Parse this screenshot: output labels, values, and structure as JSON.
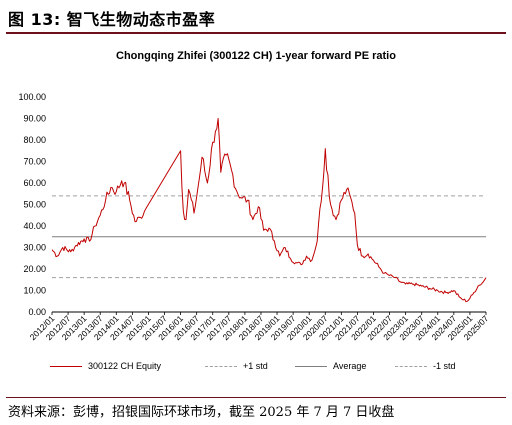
{
  "figure": {
    "title": "图 13: 智飞生物动态市盈率",
    "source": "资料来源：彭博，招银国际环球市场，截至 2025 年 7 月 7 日收盘"
  },
  "colors": {
    "series": "#c00000",
    "plus_std": "#a0a0a0",
    "average": "#7f7f7f",
    "minus_std": "#a0a0a0",
    "rule": "#6d0f1a"
  },
  "legend": {
    "series": "300122 CH Equity",
    "plus_std": "+1 std",
    "average": "Average",
    "minus_std": "-1 std"
  },
  "chart_data": {
    "type": "line",
    "title": "Chongqing Zhifei (300122 CH) 1-year forward PE ratio",
    "xlabel": "",
    "ylabel": "",
    "ylim": [
      0,
      100
    ],
    "yticks": [
      "100.00",
      "90.00",
      "80.00",
      "70.00",
      "60.00",
      "50.00",
      "40.00",
      "30.00",
      "20.00",
      "10.00",
      "0.00"
    ],
    "xticks": [
      "2012/01",
      "2012/07",
      "2013/01",
      "2013/07",
      "2014/01",
      "2014/07",
      "2015/01",
      "2015/07",
      "2016/01",
      "2016/07",
      "2017/01",
      "2017/07",
      "2018/01",
      "2018/07",
      "2019/01",
      "2019/07",
      "2020/01",
      "2020/07",
      "2021/01",
      "2021/07",
      "2022/01",
      "2022/07",
      "2023/01",
      "2023/07",
      "2024/01",
      "2024/07",
      "2025/01",
      "2025/07"
    ],
    "grid": false,
    "legend_position": "bottom",
    "reference_lines": {
      "plus_std": 54,
      "average": 35,
      "minus_std": 16
    },
    "series": [
      {
        "name": "300122 CH Equity",
        "x": [
          "2012/01",
          "2012/03",
          "2012/05",
          "2012/08",
          "2012/10",
          "2013/01",
          "2013/03",
          "2013/05",
          "2013/07",
          "2013/09",
          "2013/11",
          "2014/01",
          "2014/03",
          "2014/04",
          "2014/06",
          "2014/08",
          "2014/10",
          "2014/12",
          "2016/01",
          "2016/02",
          "2016/03",
          "2016/04",
          "2016/06",
          "2016/08",
          "2016/09",
          "2016/11",
          "2017/01",
          "2017/02",
          "2017/03",
          "2017/04",
          "2017/06",
          "2017/08",
          "2017/10",
          "2017/12",
          "2018/02",
          "2018/04",
          "2018/06",
          "2018/08",
          "2018/10",
          "2018/12",
          "2019/02",
          "2019/04",
          "2019/06",
          "2019/08",
          "2019/10",
          "2019/12",
          "2020/02",
          "2020/04",
          "2020/05",
          "2020/06",
          "2020/07",
          "2020/09",
          "2020/11",
          "2021/01",
          "2021/03",
          "2021/05",
          "2021/06",
          "2021/07",
          "2021/09",
          "2021/11",
          "2022/01",
          "2022/03",
          "2022/05",
          "2022/07",
          "2022/09",
          "2022/11",
          "2023/01",
          "2023/04",
          "2023/07",
          "2023/10",
          "2024/01",
          "2024/04",
          "2024/07",
          "2024/09",
          "2024/10",
          "2024/12",
          "2025/02",
          "2025/04",
          "2025/06",
          "2025/07"
        ],
        "values": [
          29,
          26,
          30,
          28,
          31,
          34,
          33,
          40,
          45,
          52,
          58,
          56,
          61,
          60,
          52,
          42,
          44,
          48,
          75,
          47,
          43,
          57,
          46,
          62,
          72,
          60,
          79,
          84,
          90,
          65,
          73,
          66,
          56,
          53,
          52,
          43,
          49,
          38,
          39,
          33,
          26,
          30,
          25,
          23,
          22,
          26,
          24,
          33,
          48,
          58,
          76,
          50,
          43,
          52,
          57,
          51,
          46,
          31,
          26,
          27,
          24,
          21,
          18,
          17,
          16,
          14,
          13,
          13,
          12,
          11,
          10,
          9,
          10,
          7,
          6,
          5,
          8,
          12,
          14,
          16
        ]
      }
    ]
  }
}
